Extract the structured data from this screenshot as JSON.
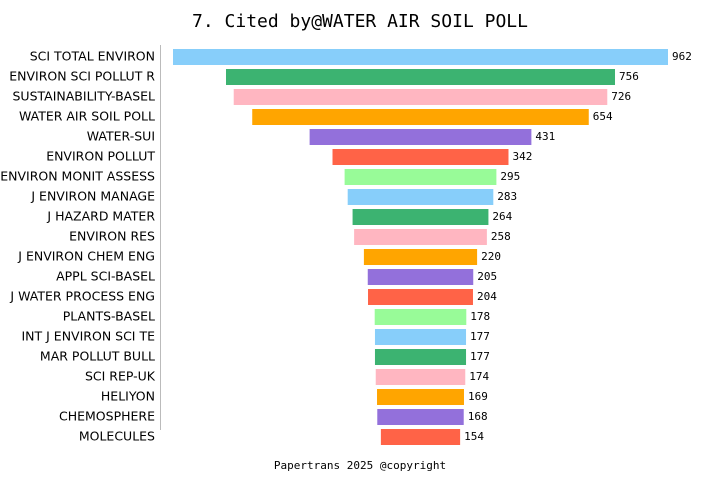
{
  "chart_data": {
    "type": "bar",
    "orientation": "horizontal-centered",
    "title": "7. Cited by@WATER AIR SOIL POLL",
    "footer": "Papertrans 2025 @copyright",
    "categories": [
      "SCI TOTAL ENVIRON",
      "ENVIRON SCI POLLUT R",
      "SUSTAINABILITY-BASEL",
      "WATER AIR SOIL POLL",
      "WATER-SUI",
      "ENVIRON POLLUT",
      "ENVIRON MONIT ASSESS",
      "J ENVIRON MANAGE",
      "J HAZARD MATER",
      "ENVIRON RES",
      "J ENVIRON CHEM ENG",
      "APPL SCI-BASEL",
      "J WATER PROCESS ENG",
      "PLANTS-BASEL",
      "INT J ENVIRON SCI TE",
      "MAR POLLUT BULL",
      "SCI REP-UK",
      "HELIYON",
      "CHEMOSPHERE",
      "MOLECULES"
    ],
    "values": [
      962,
      756,
      726,
      654,
      431,
      342,
      295,
      283,
      264,
      258,
      220,
      205,
      204,
      178,
      177,
      177,
      174,
      169,
      168,
      154
    ],
    "colors": [
      "#87cefa",
      "#3cb371",
      "#ffb6c1",
      "#ffa500",
      "#9370db",
      "#ff6347",
      "#98fb98",
      "#87cefa",
      "#3cb371",
      "#ffb6c1",
      "#ffa500",
      "#9370db",
      "#ff6347",
      "#98fb98",
      "#87cefa",
      "#3cb371",
      "#ffb6c1",
      "#ffa500",
      "#9370db",
      "#ff6347"
    ]
  }
}
